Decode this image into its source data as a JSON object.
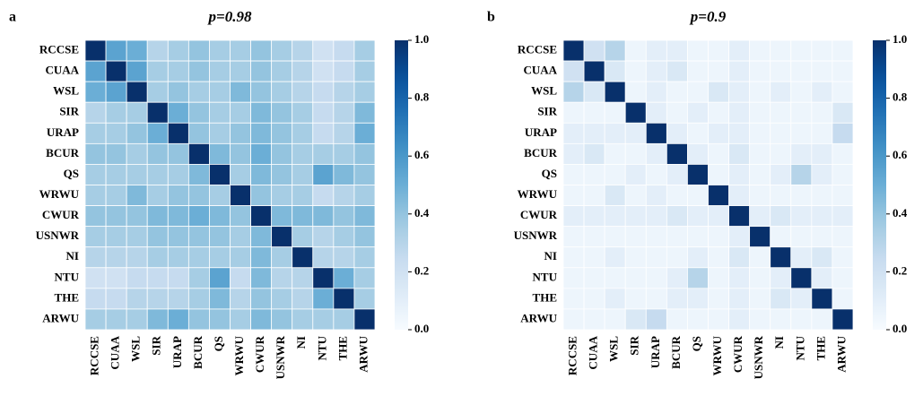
{
  "chart_data": [
    {
      "type": "heatmap",
      "panel": "a",
      "title": "p=0.98",
      "colormap": "Blues",
      "categories": [
        "RCCSE",
        "CUAA",
        "WSL",
        "SIR",
        "URAP",
        "BCUR",
        "QS",
        "WRWU",
        "CWUR",
        "USNWR",
        "NI",
        "NTU",
        "THE",
        "ARWU"
      ],
      "values": [
        [
          1,
          0.55,
          0.5,
          0.3,
          0.35,
          0.4,
          0.35,
          0.35,
          0.4,
          0.35,
          0.3,
          0.2,
          0.25,
          0.35
        ],
        [
          0.55,
          1,
          0.55,
          0.35,
          0.35,
          0.4,
          0.35,
          0.35,
          0.4,
          0.35,
          0.3,
          0.2,
          0.25,
          0.35
        ],
        [
          0.5,
          0.55,
          1,
          0.35,
          0.4,
          0.35,
          0.35,
          0.45,
          0.4,
          0.35,
          0.3,
          0.25,
          0.3,
          0.35
        ],
        [
          0.3,
          0.35,
          0.35,
          1,
          0.5,
          0.4,
          0.35,
          0.35,
          0.45,
          0.4,
          0.35,
          0.25,
          0.3,
          0.45
        ],
        [
          0.35,
          0.35,
          0.4,
          0.5,
          1,
          0.4,
          0.35,
          0.4,
          0.45,
          0.4,
          0.35,
          0.25,
          0.3,
          0.5
        ],
        [
          0.4,
          0.4,
          0.35,
          0.4,
          0.4,
          1,
          0.45,
          0.4,
          0.5,
          0.4,
          0.35,
          0.35,
          0.35,
          0.4
        ],
        [
          0.35,
          0.35,
          0.35,
          0.35,
          0.35,
          0.45,
          1,
          0.35,
          0.45,
          0.4,
          0.35,
          0.55,
          0.45,
          0.4
        ],
        [
          0.35,
          0.35,
          0.45,
          0.35,
          0.4,
          0.4,
          0.35,
          1,
          0.4,
          0.35,
          0.35,
          0.25,
          0.3,
          0.35
        ],
        [
          0.4,
          0.4,
          0.4,
          0.45,
          0.45,
          0.5,
          0.45,
          0.4,
          1,
          0.45,
          0.45,
          0.45,
          0.4,
          0.45
        ],
        [
          0.35,
          0.35,
          0.35,
          0.4,
          0.4,
          0.4,
          0.4,
          0.35,
          0.45,
          1,
          0.35,
          0.3,
          0.35,
          0.4
        ],
        [
          0.3,
          0.3,
          0.3,
          0.35,
          0.35,
          0.35,
          0.35,
          0.35,
          0.45,
          0.35,
          1,
          0.3,
          0.3,
          0.35
        ],
        [
          0.2,
          0.2,
          0.25,
          0.25,
          0.25,
          0.35,
          0.55,
          0.25,
          0.45,
          0.3,
          0.3,
          1,
          0.5,
          0.35
        ],
        [
          0.25,
          0.25,
          0.3,
          0.3,
          0.3,
          0.35,
          0.45,
          0.3,
          0.4,
          0.35,
          0.3,
          0.5,
          1,
          0.35
        ],
        [
          0.35,
          0.35,
          0.35,
          0.45,
          0.5,
          0.4,
          0.4,
          0.35,
          0.45,
          0.4,
          0.35,
          0.35,
          0.35,
          1
        ]
      ],
      "zlim": [
        0,
        1
      ],
      "zticks": [
        {
          "value": 0,
          "label": "0.0"
        },
        {
          "value": 0.2,
          "label": "0.2"
        },
        {
          "value": 0.4,
          "label": "0.4"
        },
        {
          "value": 0.6,
          "label": "0.6"
        },
        {
          "value": 0.8,
          "label": "0.8"
        },
        {
          "value": 1,
          "label": "1.0"
        }
      ]
    },
    {
      "type": "heatmap",
      "panel": "b",
      "title": "p=0.9",
      "colormap": "Blues",
      "categories": [
        "RCCSE",
        "CUAA",
        "WSL",
        "SIR",
        "URAP",
        "BCUR",
        "QS",
        "WRWU",
        "CWUR",
        "USNWR",
        "NI",
        "NTU",
        "THE",
        "ARWU"
      ],
      "values": [
        [
          1,
          0.2,
          0.3,
          0.05,
          0.1,
          0.1,
          0.05,
          0.05,
          0.1,
          0.05,
          0.05,
          0.05,
          0.05,
          0.05
        ],
        [
          0.2,
          1,
          0.15,
          0.05,
          0.1,
          0.15,
          0.05,
          0.05,
          0.1,
          0.05,
          0.05,
          0.05,
          0.05,
          0.05
        ],
        [
          0.3,
          0.15,
          1,
          0.05,
          0.1,
          0.05,
          0.05,
          0.15,
          0.1,
          0.05,
          0.1,
          0.05,
          0.1,
          0.05
        ],
        [
          0.05,
          0.05,
          0.05,
          1,
          0.1,
          0.05,
          0.1,
          0.05,
          0.1,
          0.05,
          0.05,
          0.05,
          0.05,
          0.15
        ],
        [
          0.1,
          0.1,
          0.1,
          0.1,
          1,
          0.1,
          0.05,
          0.1,
          0.1,
          0.05,
          0.05,
          0.05,
          0.05,
          0.25
        ],
        [
          0.1,
          0.15,
          0.05,
          0.05,
          0.1,
          1,
          0.1,
          0.05,
          0.15,
          0.05,
          0.05,
          0.1,
          0.1,
          0.05
        ],
        [
          0.05,
          0.05,
          0.05,
          0.1,
          0.05,
          0.1,
          1,
          0.05,
          0.1,
          0.05,
          0.1,
          0.3,
          0.1,
          0.05
        ],
        [
          0.05,
          0.05,
          0.15,
          0.05,
          0.1,
          0.05,
          0.05,
          1,
          0.1,
          0.05,
          0.05,
          0.05,
          0.05,
          0.05
        ],
        [
          0.1,
          0.1,
          0.1,
          0.1,
          0.1,
          0.15,
          0.1,
          0.1,
          1,
          0.1,
          0.15,
          0.1,
          0.1,
          0.1
        ],
        [
          0.05,
          0.05,
          0.05,
          0.05,
          0.05,
          0.05,
          0.05,
          0.05,
          0.1,
          1,
          0.05,
          0.05,
          0.05,
          0.05
        ],
        [
          0.05,
          0.05,
          0.1,
          0.05,
          0.05,
          0.05,
          0.1,
          0.05,
          0.15,
          0.05,
          1,
          0.1,
          0.15,
          0.05
        ],
        [
          0.05,
          0.05,
          0.05,
          0.05,
          0.05,
          0.1,
          0.3,
          0.05,
          0.1,
          0.05,
          0.1,
          1,
          0.1,
          0.05
        ],
        [
          0.05,
          0.05,
          0.1,
          0.05,
          0.05,
          0.1,
          0.1,
          0.05,
          0.1,
          0.05,
          0.15,
          0.1,
          1,
          0.05
        ],
        [
          0.05,
          0.05,
          0.05,
          0.15,
          0.25,
          0.05,
          0.05,
          0.05,
          0.1,
          0.05,
          0.05,
          0.05,
          0.05,
          1
        ]
      ],
      "zlim": [
        0,
        1
      ],
      "zticks": [
        {
          "value": 0,
          "label": "0.0"
        },
        {
          "value": 0.2,
          "label": "0.2"
        },
        {
          "value": 0.4,
          "label": "0.4"
        },
        {
          "value": 0.6,
          "label": "0.6"
        },
        {
          "value": 0.8,
          "label": "0.8"
        },
        {
          "value": 1,
          "label": "1.0"
        }
      ]
    }
  ]
}
